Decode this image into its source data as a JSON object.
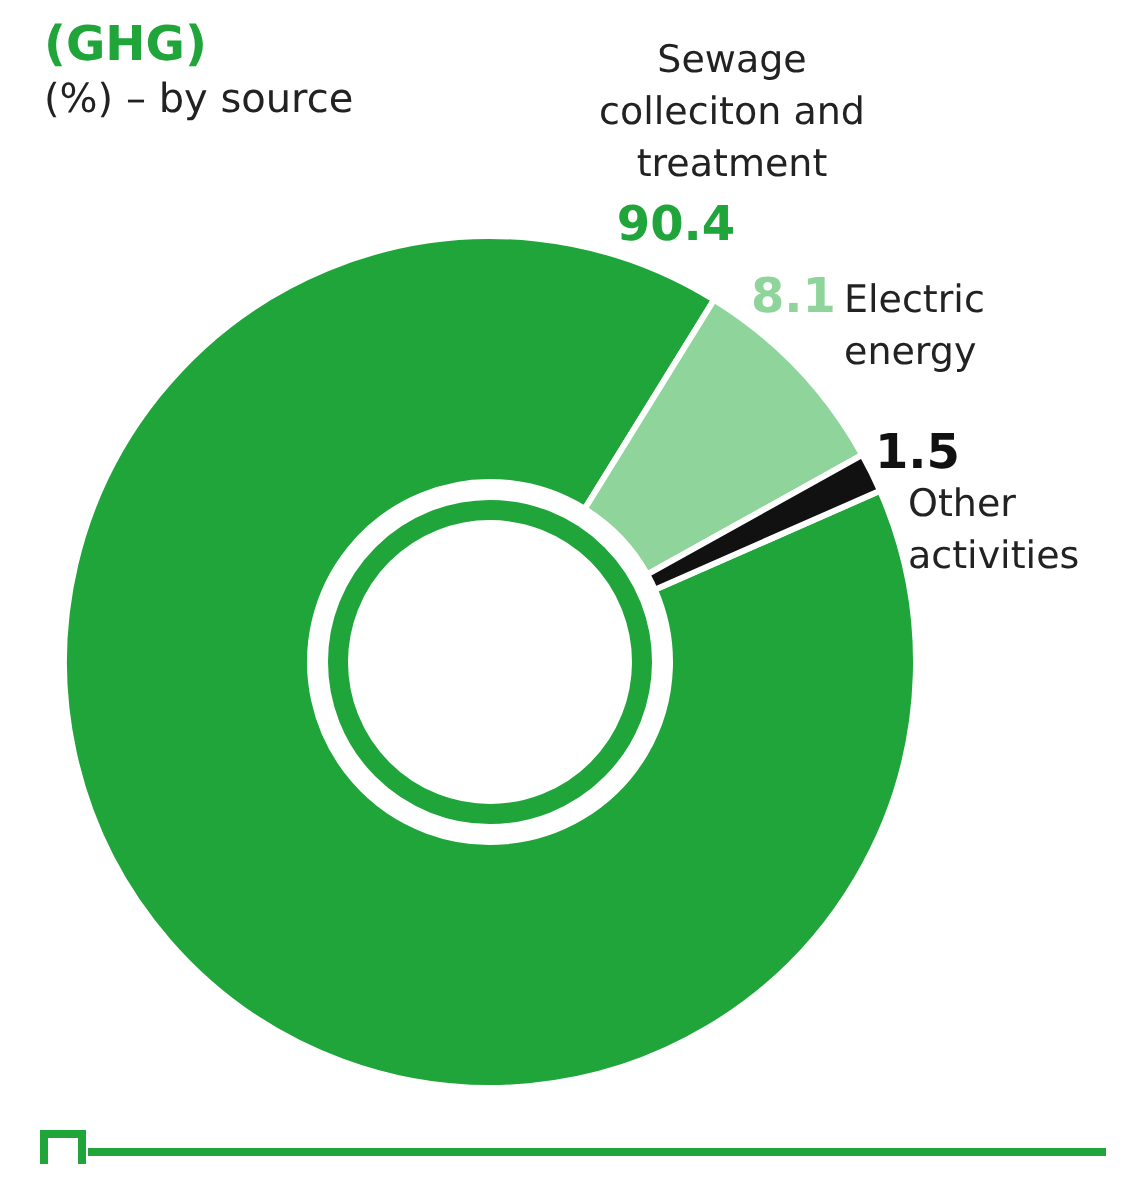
{
  "chart_data": {
    "type": "donut",
    "title": "(GHG)",
    "subtitle": "(%) – by source",
    "categories": [
      "Sewage colleciton and treatment",
      "Electric energy",
      "Other activities"
    ],
    "values": [
      90.4,
      8.1,
      1.5
    ],
    "colors": [
      "#1fa53a",
      "#8fd49b",
      "#111111"
    ],
    "data_labels": true,
    "legend": false
  }
}
